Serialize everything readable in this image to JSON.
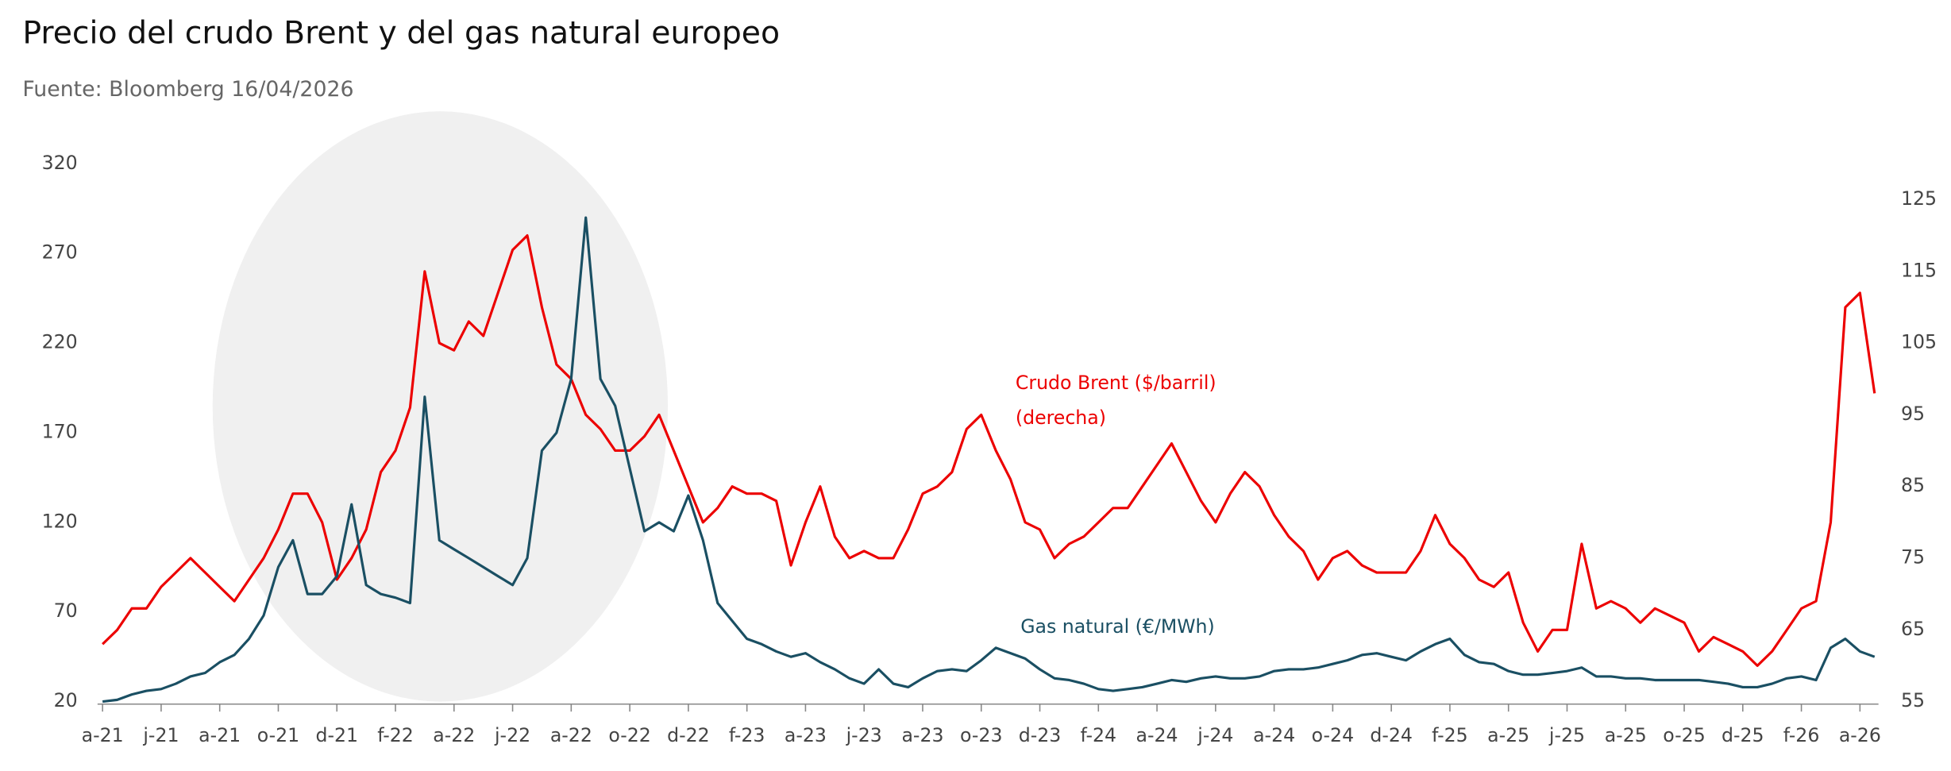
{
  "chart_data": {
    "type": "line",
    "title": "Precio del crudo Brent y del gas natural europeo",
    "subtitle": "Fuente: Bloomberg 16/04/2026",
    "categories": [
      "a-21",
      null,
      null,
      null,
      "j-21",
      null,
      null,
      null,
      "a-21",
      null,
      null,
      null,
      "o-21",
      null,
      null,
      null,
      "d-21",
      null,
      null,
      null,
      "f-22",
      null,
      null,
      null,
      "a-22",
      null,
      null,
      null,
      "j-22",
      null,
      null,
      null,
      "a-22",
      null,
      null,
      null,
      "o-22",
      null,
      null,
      null,
      "d-22",
      null,
      null,
      null,
      "f-23",
      null,
      null,
      null,
      "a-23",
      null,
      null,
      null,
      "j-23",
      null,
      null,
      null,
      "a-23",
      null,
      null,
      null,
      "o-23",
      null,
      null,
      null,
      "d-23",
      null,
      null,
      null,
      "f-24",
      null,
      null,
      null,
      "a-24",
      null,
      null,
      null,
      "j-24",
      null,
      null,
      null,
      "a-24",
      null,
      null,
      null,
      "o-24",
      null,
      null,
      null,
      "d-24",
      null,
      null,
      null,
      "f-25",
      null,
      null,
      null,
      "a-25",
      null,
      null,
      null,
      "j-25",
      null,
      null,
      null,
      "a-25",
      null,
      null,
      null,
      "o-25",
      null,
      null,
      null,
      "d-25",
      null,
      null,
      null,
      "f-26",
      null,
      null,
      null,
      "a-26",
      null
    ],
    "series": [
      {
        "name": "Crudo Brent ($/barril)",
        "note": "(derecha)",
        "color": "#ec0000",
        "axis": "y2",
        "values": [
          63,
          65,
          68,
          68,
          71,
          73,
          75,
          73,
          71,
          69,
          72,
          75,
          79,
          84,
          84,
          80,
          72,
          75,
          79,
          87,
          90,
          96,
          115,
          105,
          104,
          108,
          106,
          112,
          118,
          120,
          110,
          102,
          100,
          95,
          93,
          90,
          90,
          92,
          95,
          90,
          85,
          80,
          82,
          85,
          84,
          84,
          83,
          74,
          80,
          85,
          78,
          75,
          76,
          75,
          75,
          79,
          84,
          85,
          87,
          93,
          95,
          90,
          86,
          80,
          79,
          75,
          77,
          78,
          80,
          82,
          82,
          85,
          88,
          91,
          87,
          83,
          80,
          84,
          87,
          85,
          81,
          78,
          76,
          72,
          75,
          76,
          74,
          73,
          73,
          73,
          76,
          81,
          77,
          75,
          72,
          71,
          73,
          66,
          62,
          65,
          65,
          77,
          68,
          69,
          68,
          66,
          68,
          67,
          66,
          62,
          64,
          63,
          62,
          60,
          62,
          65,
          68,
          69,
          80,
          110,
          112,
          98
        ]
      },
      {
        "name": "Gas natural (€/MWh)",
        "color": "#1a4f63",
        "axis": "y",
        "values": [
          20,
          21,
          24,
          26,
          27,
          30,
          34,
          36,
          42,
          46,
          55,
          68,
          95,
          110,
          80,
          80,
          90,
          130,
          85,
          80,
          78,
          75,
          190,
          110,
          105,
          100,
          95,
          90,
          85,
          100,
          160,
          170,
          200,
          290,
          200,
          185,
          150,
          115,
          120,
          115,
          135,
          110,
          75,
          65,
          55,
          52,
          48,
          45,
          47,
          42,
          38,
          33,
          30,
          38,
          30,
          28,
          33,
          37,
          38,
          37,
          43,
          50,
          47,
          44,
          38,
          33,
          32,
          30,
          27,
          26,
          27,
          28,
          30,
          32,
          31,
          33,
          34,
          33,
          33,
          34,
          37,
          38,
          38,
          39,
          41,
          43,
          46,
          47,
          45,
          43,
          48,
          52,
          55,
          46,
          42,
          41,
          37,
          35,
          35,
          36,
          37,
          39,
          34,
          34,
          33,
          33,
          32,
          32,
          32,
          32,
          31,
          30,
          28,
          28,
          30,
          33,
          34,
          32,
          50,
          55,
          48,
          45
        ]
      }
    ],
    "ylim": [
      20,
      320
    ],
    "yticks": [
      20,
      70,
      120,
      170,
      220,
      270,
      320
    ],
    "y2lim": [
      55,
      130
    ],
    "y2ticks": [
      55,
      65,
      75,
      85,
      95,
      105,
      115,
      125
    ]
  }
}
